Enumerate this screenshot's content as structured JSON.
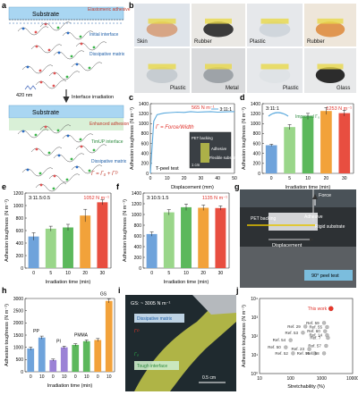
{
  "panel_letters": [
    "a",
    "b",
    "c",
    "d",
    "e",
    "f",
    "g",
    "h",
    "i",
    "j"
  ],
  "a": {
    "substrate": "Substrate",
    "top_labels": [
      "Elastomeric adhesive",
      "Initial interface",
      "Dissipative matrix"
    ],
    "wavelength": "420 nm",
    "irradiation": "Interface irradiation",
    "bottom_labels": [
      "Enhanced adhesion",
      "TimUP interface",
      "Dissipative matrix",
      "Γ = Γ₀ + Γᴰ"
    ],
    "legend_marks": [
      "E",
      "F"
    ]
  },
  "b": {
    "photo_labels": [
      "Skin",
      "Rubber",
      "Plastic",
      "Rubber",
      "Plastic",
      "Metal",
      "Plastic",
      "Glass"
    ]
  },
  "chart_data": [
    {
      "panel": "c",
      "type": "line",
      "xlabel": "Displacement (mm)",
      "ylabel": "Adhesion toughness (N m⁻¹)",
      "xlim": [
        0,
        50
      ],
      "ylim": [
        0,
        1400
      ],
      "xticks": [
        0,
        10,
        20,
        30,
        40,
        50
      ],
      "yticks": [
        0,
        200,
        400,
        600,
        800,
        1000,
        1200,
        1400
      ],
      "series": [
        {
          "name": "3:11:1",
          "x": [
            0,
            2,
            4,
            8,
            12,
            16,
            20,
            24,
            28,
            32,
            36,
            40,
            44,
            48,
            50
          ],
          "y": [
            0,
            1050,
            1180,
            1210,
            1220,
            1230,
            1225,
            1240,
            1230,
            1235,
            1240,
            1230,
            1235,
            1240,
            1240
          ]
        }
      ],
      "peak_annotation": "565 N m⁻¹",
      "formula": "Γ = Force/Width",
      "test_label": "T-peel test",
      "inset_labels": [
        "PET backing",
        "Adhesive",
        "Flexible substrate"
      ],
      "inset_scale": "1 cm"
    },
    {
      "panel": "d",
      "type": "bar",
      "subtitle": "3:11:1",
      "categories": [
        "0",
        "5",
        "10",
        "20",
        "30"
      ],
      "values": [
        565,
        930,
        1145,
        1253,
        1210
      ],
      "errors": [
        20,
        50,
        60,
        70,
        60
      ],
      "colors": [
        "#6fa3db",
        "#9ad68a",
        "#5cb85c",
        "#f2a23a",
        "#e84e40"
      ],
      "xlabel": "Irradiation time (min)",
      "ylabel": "Adhesion toughness (N m⁻¹)",
      "ylim": [
        0,
        1400
      ],
      "yticks": [
        0,
        200,
        400,
        600,
        800,
        1000,
        1200,
        1400
      ],
      "annotation": "1253 N m⁻¹",
      "annotation_sub": "Improved Γ₀"
    },
    {
      "panel": "e",
      "type": "bar",
      "subtitle": "3:11.5:0.5",
      "categories": [
        "0",
        "5",
        "10",
        "20",
        "30"
      ],
      "values": [
        505,
        630,
        650,
        840,
        1052
      ],
      "errors": [
        60,
        40,
        50,
        100,
        40
      ],
      "colors": [
        "#6fa3db",
        "#9ad68a",
        "#5cb85c",
        "#f2a23a",
        "#e84e40"
      ],
      "xlabel": "Irradiation time (min)",
      "ylabel": "Adhesion toughness (N m⁻¹)",
      "ylim": [
        0,
        1200
      ],
      "yticks": [
        0,
        200,
        400,
        600,
        800,
        1000,
        1200
      ],
      "annotation": "1052 N m⁻¹"
    },
    {
      "panel": "f",
      "type": "bar",
      "subtitle": "3:10.5:1.5",
      "categories": [
        "0",
        "5",
        "10",
        "20",
        "30"
      ],
      "values": [
        635,
        1040,
        1135,
        1125,
        1120
      ],
      "errors": [
        40,
        50,
        60,
        50,
        40
      ],
      "colors": [
        "#6fa3db",
        "#9ad68a",
        "#5cb85c",
        "#f2a23a",
        "#e84e40"
      ],
      "xlabel": "Irradiation time (min)",
      "ylabel": "Adhesion toughness (N m⁻¹)",
      "ylim": [
        0,
        1400
      ],
      "yticks": [
        0,
        200,
        400,
        600,
        800,
        1000,
        1200,
        1400
      ],
      "annotation": "1135 N m⁻¹"
    },
    {
      "panel": "h",
      "type": "bar",
      "groups": [
        "PP",
        "PI",
        "PMMA",
        "GS"
      ],
      "categories": [
        "0",
        "10",
        "0",
        "10",
        "0",
        "10",
        "0",
        "10"
      ],
      "values": [
        950,
        1400,
        480,
        1000,
        1100,
        1250,
        1300,
        2900
      ],
      "errors": [
        60,
        60,
        40,
        50,
        50,
        50,
        60,
        80
      ],
      "colors": [
        "#6fa3db",
        "#6fa3db",
        "#9b82d6",
        "#9b82d6",
        "#5cb85c",
        "#5cb85c",
        "#f2a23a",
        "#f2a23a"
      ],
      "xlabel": "Irradiation time (min)",
      "ylabel": "Adhesion toughness (N m⁻¹)",
      "ylim": [
        0,
        3000
      ],
      "yticks": [
        0,
        500,
        1000,
        1500,
        2000,
        2500,
        3000
      ]
    },
    {
      "panel": "j",
      "type": "scatter",
      "xlabel": "Stretchability (%)",
      "ylabel": "Adhesion toughness (N m⁻¹)",
      "xscale": "log",
      "yscale": "log",
      "xlim": [
        10,
        10000
      ],
      "ylim": [
        1,
        10000
      ],
      "xtick_labels": [
        "10",
        "100",
        "1000",
        "10000"
      ],
      "ytick_labels": [
        "10⁰",
        "10¹",
        "10²",
        "10³",
        "10⁴"
      ],
      "points": [
        {
          "label": "This work",
          "x": 2000,
          "y": 2900,
          "color": "#e8382a"
        },
        {
          "label": "Ref. 59",
          "x": 1200,
          "y": 500,
          "color": "#bcbcbc"
        },
        {
          "label": "Ref. 55",
          "x": 1500,
          "y": 300,
          "color": "#bcbcbc"
        },
        {
          "label": "Ref. 29",
          "x": 300,
          "y": 320,
          "color": "#bcbcbc"
        },
        {
          "label": "Ref. 60",
          "x": 1300,
          "y": 180,
          "color": "#bcbcbc"
        },
        {
          "label": "Ref. 53",
          "x": 250,
          "y": 150,
          "color": "#bcbcbc"
        },
        {
          "label": "Ref. 14",
          "x": 1500,
          "y": 110,
          "color": "#bcbcbc"
        },
        {
          "label": "Ref. 7",
          "x": 1600,
          "y": 80,
          "color": "#bcbcbc"
        },
        {
          "label": "Ref. 54",
          "x": 100,
          "y": 60,
          "color": "#bcbcbc"
        },
        {
          "label": "Ref. 57",
          "x": 1400,
          "y": 30,
          "color": "#bcbcbc"
        },
        {
          "label": "Ref. 50",
          "x": 70,
          "y": 25,
          "color": "#bcbcbc"
        },
        {
          "label": "Ref. 23",
          "x": 400,
          "y": 20,
          "color": "#bcbcbc"
        },
        {
          "label": "Ref. 52",
          "x": 120,
          "y": 12,
          "color": "#bcbcbc"
        },
        {
          "label": "Ref. 56",
          "x": 600,
          "y": 12,
          "color": "#bcbcbc"
        },
        {
          "label": "Ref. 58",
          "x": 1200,
          "y": 12,
          "color": "#bcbcbc"
        }
      ]
    }
  ],
  "g": {
    "labels": [
      "Force",
      "PET backing",
      "Adhesive",
      "Rigid substrate",
      "Displacement",
      "90° peel test"
    ]
  },
  "i": {
    "labels": [
      "GS: ~ 3005 N m⁻¹",
      "Dissipative matrix",
      "Tough interface",
      "0.5 cm"
    ],
    "legend_marks": [
      "Γᴰ",
      "Γ₀"
    ]
  }
}
